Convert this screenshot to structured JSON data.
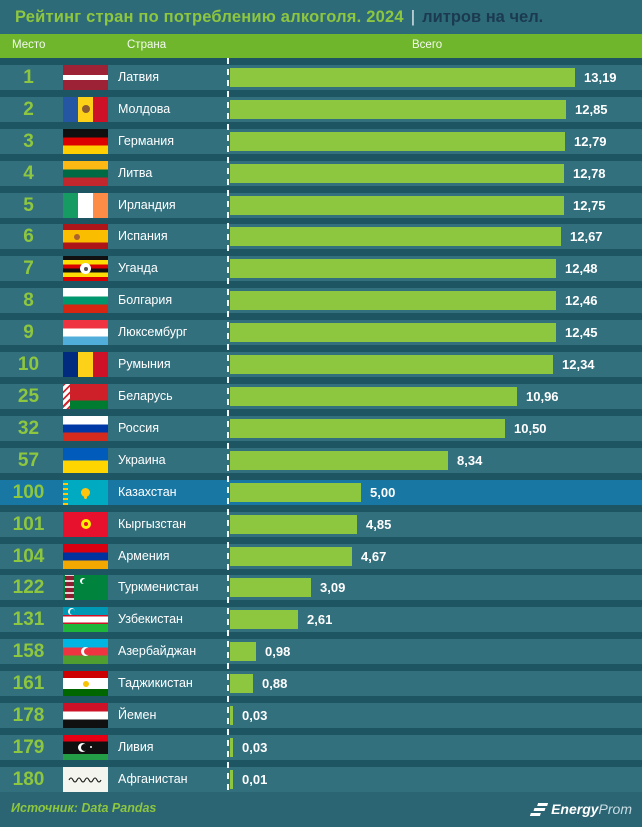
{
  "title": {
    "main": "Рейтинг стран по потреблению алкоголя. 2024",
    "separator": "|",
    "suffix": "литров на чел."
  },
  "header": {
    "place": "Место",
    "country": "Страна",
    "total": "Всего"
  },
  "footer": {
    "source": "Источник: Data Pandas",
    "logo": {
      "bold": "Energy",
      "light": "Prom"
    }
  },
  "colors": {
    "background_teal": "#1D5563",
    "band_teal": "#33707E",
    "titlebar_teal": "#2E6B79",
    "header_green": "#70B62C",
    "bar_green": "#8DC63F",
    "accent_green": "#8DC63F",
    "highlight_blue": "#1878A3",
    "title_dark": "#1B3A50",
    "text_white": "#FFFFFF"
  },
  "chart_data": {
    "type": "bar",
    "orientation": "horizontal",
    "title": "Рейтинг стран по потреблению алкоголя. 2024",
    "unit": "литров на чел.",
    "xlim": [
      0,
      13.19
    ],
    "legend": "none",
    "grid": "off",
    "highlight_country": "Казахстан",
    "rows": [
      {
        "rank": "1",
        "country": "Латвия",
        "value": 13.19,
        "value_display": "13,19",
        "flag": {
          "id": "latvia",
          "dir": "h",
          "stripes": [
            [
              "#9D2235",
              2
            ],
            [
              "#FFFFFF",
              1
            ],
            [
              "#9D2235",
              2
            ]
          ]
        }
      },
      {
        "rank": "2",
        "country": "Молдова",
        "value": 12.85,
        "value_display": "12,85",
        "flag": {
          "id": "moldova",
          "dir": "v",
          "stripes": [
            [
              "#2456A4",
              1
            ],
            [
              "#FCD117",
              1
            ],
            [
              "#CE1127",
              1
            ]
          ],
          "emblems": [
            {
              "type": "circle",
              "color": "#8A5A32",
              "size": 8
            }
          ]
        }
      },
      {
        "rank": "3",
        "country": "Германия",
        "value": 12.79,
        "value_display": "12,79",
        "flag": {
          "id": "germany",
          "dir": "h",
          "stripes": [
            [
              "#101010",
              1
            ],
            [
              "#DD0000",
              1
            ],
            [
              "#FFCE00",
              1
            ]
          ]
        }
      },
      {
        "rank": "4",
        "country": "Литва",
        "value": 12.78,
        "value_display": "12,78",
        "flag": {
          "id": "lithuania",
          "dir": "h",
          "stripes": [
            [
              "#FDB913",
              1
            ],
            [
              "#006A44",
              1
            ],
            [
              "#C1272D",
              1
            ]
          ]
        }
      },
      {
        "rank": "5",
        "country": "Ирландия",
        "value": 12.75,
        "value_display": "12,75",
        "flag": {
          "id": "ireland",
          "dir": "v",
          "stripes": [
            [
              "#169B62",
              1
            ],
            [
              "#FFFFFF",
              1
            ],
            [
              "#FF8C46",
              1
            ]
          ]
        }
      },
      {
        "rank": "6",
        "country": "Испания",
        "value": 12.67,
        "value_display": "12,67",
        "flag": {
          "id": "spain",
          "dir": "h",
          "stripes": [
            [
              "#AD1519",
              1
            ],
            [
              "#FABD00",
              2
            ],
            [
              "#AD1519",
              1
            ]
          ],
          "emblems": [
            {
              "type": "circle",
              "color": "#A8612F",
              "size": 6,
              "x": 30
            }
          ]
        }
      },
      {
        "rank": "7",
        "country": "Уганда",
        "value": 12.48,
        "value_display": "12,48",
        "flag": {
          "id": "uganda",
          "dir": "h",
          "stripes": [
            [
              "#101010",
              1
            ],
            [
              "#FCDC04",
              1
            ],
            [
              "#D90000",
              1
            ],
            [
              "#101010",
              1
            ],
            [
              "#FCDC04",
              1
            ],
            [
              "#D90000",
              1
            ]
          ],
          "emblems": [
            {
              "type": "circle",
              "color": "#FFFFFF",
              "size": 11
            },
            {
              "type": "circle",
              "color": "#555555",
              "size": 4
            }
          ]
        }
      },
      {
        "rank": "8",
        "country": "Болгария",
        "value": 12.46,
        "value_display": "12,46",
        "flag": {
          "id": "bulgaria",
          "dir": "h",
          "stripes": [
            [
              "#FFFFFF",
              1
            ],
            [
              "#00966E",
              1
            ],
            [
              "#D62612",
              1
            ]
          ]
        }
      },
      {
        "rank": "9",
        "country": "Люксембург",
        "value": 12.45,
        "value_display": "12,45",
        "flag": {
          "id": "luxembourg",
          "dir": "h",
          "stripes": [
            [
              "#EF3340",
              1
            ],
            [
              "#FFFFFF",
              1
            ],
            [
              "#51ADDA",
              1
            ]
          ]
        }
      },
      {
        "rank": "10",
        "country": "Румыния",
        "value": 12.34,
        "value_display": "12,34",
        "flag": {
          "id": "romania",
          "dir": "v",
          "stripes": [
            [
              "#012B7E",
              1
            ],
            [
              "#FCD117",
              1
            ],
            [
              "#CE1126",
              1
            ]
          ]
        }
      },
      {
        "rank": "25",
        "country": "Беларусь",
        "value": 10.96,
        "value_display": "10,96",
        "flag": {
          "id": "belarus",
          "dir": "h",
          "stripes": [
            [
              "#CE2029",
              2
            ],
            [
              "#007C30",
              1
            ]
          ],
          "emblems": [
            {
              "type": "strip",
              "pattern": "belarus"
            }
          ]
        }
      },
      {
        "rank": "32",
        "country": "Россия",
        "value": 10.5,
        "value_display": "10,50",
        "flag": {
          "id": "russia",
          "dir": "h",
          "stripes": [
            [
              "#FFFFFF",
              1
            ],
            [
              "#0039A6",
              1
            ],
            [
              "#D52B1E",
              1
            ]
          ]
        }
      },
      {
        "rank": "57",
        "country": "Украина",
        "value": 8.34,
        "value_display": "8,34",
        "flag": {
          "id": "ukraine",
          "dir": "h",
          "stripes": [
            [
              "#005BBB",
              1
            ],
            [
              "#FFD500",
              1
            ]
          ]
        }
      },
      {
        "rank": "100",
        "country": "Казахстан",
        "value": 5.0,
        "value_display": "5,00",
        "highlight": true,
        "flag": {
          "id": "kazakhstan",
          "solid": "#00ABC2",
          "emblems": [
            {
              "type": "strip",
              "pattern": "kazakh"
            },
            {
              "type": "circle",
              "color": "#FEC50C",
              "size": 9
            },
            {
              "type": "circle",
              "color": "#FEC50C",
              "size": 3,
              "y": 72
            }
          ]
        }
      },
      {
        "rank": "101",
        "country": "Кыргызстан",
        "value": 4.85,
        "value_display": "4,85",
        "flag": {
          "id": "kyrgyzstan",
          "solid": "#E8112D",
          "emblems": [
            {
              "type": "circle",
              "color": "#FFEF00",
              "size": 10
            },
            {
              "type": "circle",
              "color": "#E8112D",
              "size": 4
            }
          ]
        }
      },
      {
        "rank": "104",
        "country": "Армения",
        "value": 4.67,
        "value_display": "4,67",
        "flag": {
          "id": "armenia",
          "dir": "h",
          "stripes": [
            [
              "#D90012",
              1
            ],
            [
              "#0033A0",
              1
            ],
            [
              "#F2A800",
              1
            ]
          ]
        }
      },
      {
        "rank": "122",
        "country": "Туркменистан",
        "value": 3.09,
        "value_display": "3,09",
        "flag": {
          "id": "turkmenistan",
          "solid": "#00843D",
          "emblems": [
            {
              "type": "strip",
              "pattern": "turkmen"
            },
            {
              "type": "crescent",
              "size": 6,
              "bg": "#00843D",
              "x": 45,
              "y": 24
            }
          ]
        }
      },
      {
        "rank": "131",
        "country": "Узбекистан",
        "value": 2.61,
        "value_display": "2,61",
        "flag": {
          "id": "uzbekistan",
          "dir": "h",
          "stripes": [
            [
              "#0099B5",
              9
            ],
            [
              "#CE1126",
              1.2
            ],
            [
              "#FFFFFF",
              7
            ],
            [
              "#CE1126",
              1.2
            ],
            [
              "#1EB53A",
              9
            ]
          ],
          "emblems": [
            {
              "type": "crescent",
              "size": 7,
              "bg": "#0099B5",
              "x": 18,
              "y": 18
            }
          ]
        }
      },
      {
        "rank": "158",
        "country": "Азербайджан",
        "value": 0.98,
        "value_display": "0,98",
        "flag": {
          "id": "azerbaijan",
          "dir": "h",
          "stripes": [
            [
              "#00B5E2",
              1
            ],
            [
              "#EF3340",
              1
            ],
            [
              "#509E2F",
              1
            ]
          ],
          "emblems": [
            {
              "type": "crescent",
              "size": 9,
              "bg": "#EF3340"
            }
          ]
        }
      },
      {
        "rank": "161",
        "country": "Таджикистан",
        "value": 0.88,
        "value_display": "0,88",
        "flag": {
          "id": "tajikistan",
          "dir": "h",
          "stripes": [
            [
              "#CC0000",
              2
            ],
            [
              "#FFFFFF",
              3
            ],
            [
              "#006600",
              2
            ]
          ],
          "emblems": [
            {
              "type": "circle",
              "color": "#F8C300",
              "size": 6
            }
          ]
        }
      },
      {
        "rank": "178",
        "country": "Йемен",
        "value": 0.03,
        "value_display": "0,03",
        "flag": {
          "id": "yemen",
          "dir": "h",
          "stripes": [
            [
              "#CE1126",
              1
            ],
            [
              "#FFFFFF",
              1
            ],
            [
              "#101010",
              1
            ]
          ]
        }
      },
      {
        "rank": "179",
        "country": "Ливия",
        "value": 0.03,
        "value_display": "0,03",
        "flag": {
          "id": "libya",
          "dir": "h",
          "stripes": [
            [
              "#E70013",
              1
            ],
            [
              "#101010",
              2
            ],
            [
              "#239E46",
              1
            ]
          ],
          "emblems": [
            {
              "type": "crescent",
              "size": 9,
              "bg": "#101010",
              "x": 44
            },
            {
              "type": "circle",
              "color": "#FFFFFF",
              "size": 2,
              "x": 62
            }
          ]
        }
      },
      {
        "rank": "180",
        "country": "Афганистан",
        "value": 0.01,
        "value_display": "0,01",
        "flag": {
          "id": "afghanistan",
          "solid": "#F5F5F0",
          "emblems": [
            {
              "type": "script"
            }
          ]
        }
      }
    ]
  }
}
